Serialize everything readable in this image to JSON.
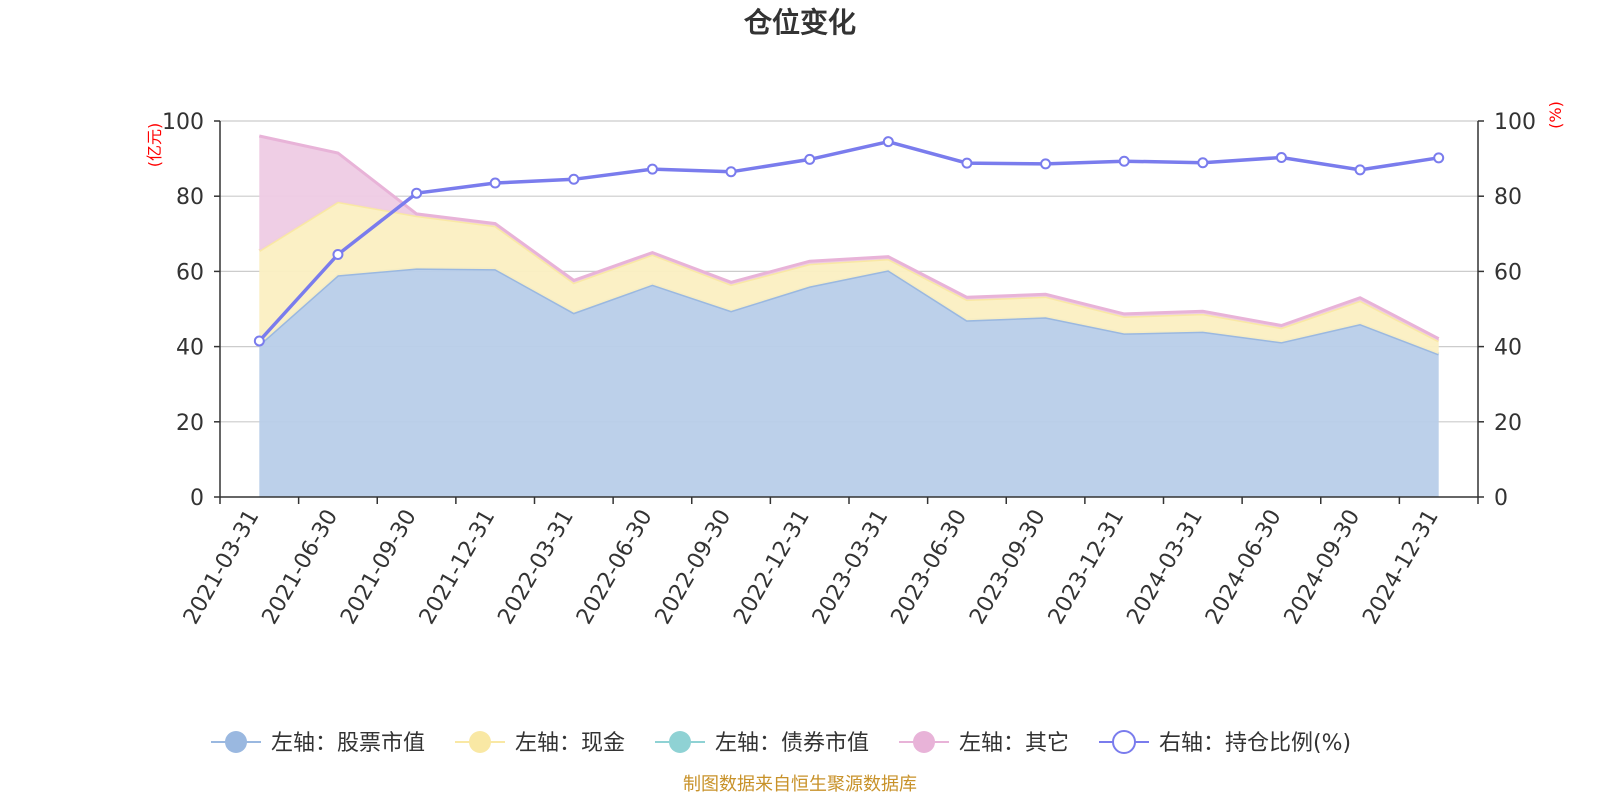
{
  "chart_data": {
    "type": "area",
    "title": "仓位变化",
    "left_unit": "(亿元)",
    "right_unit": "(%)",
    "categories": [
      "2021-03-31",
      "2021-06-30",
      "2021-09-30",
      "2021-12-31",
      "2022-03-31",
      "2022-06-30",
      "2022-09-30",
      "2022-12-31",
      "2023-03-31",
      "2023-06-30",
      "2023-09-30",
      "2023-12-31",
      "2024-03-31",
      "2024-06-30",
      "2024-09-30",
      "2024-12-31"
    ],
    "left_ylim": [
      0,
      100
    ],
    "right_ylim": [
      0,
      100
    ],
    "left_ticks": [
      "0",
      "20",
      "40",
      "60",
      "80",
      "100"
    ],
    "right_ticks": [
      "0",
      "20",
      "40",
      "60",
      "80",
      "100"
    ],
    "series": [
      {
        "name": "左轴：股票市值",
        "axis": "left",
        "kind": "stacked-area",
        "color": "#9ab8e0",
        "fill": "#b8cde9",
        "values": [
          40.5,
          59.0,
          60.8,
          60.6,
          49.0,
          56.5,
          49.5,
          56.0,
          60.3,
          47.0,
          47.8,
          43.5,
          44.0,
          41.2,
          46.0,
          38.0
        ]
      },
      {
        "name": "左轴：现金",
        "axis": "left",
        "kind": "stacked-area",
        "color": "#f9e8a4",
        "fill": "#fbefc2",
        "values": [
          25.0,
          19.5,
          14.0,
          11.5,
          8.0,
          8.0,
          7.0,
          6.0,
          3.0,
          5.5,
          5.5,
          4.5,
          4.7,
          3.8,
          6.2,
          3.5
        ]
      },
      {
        "name": "左轴：债券市值",
        "axis": "left",
        "kind": "stacked-area",
        "color": "#8fd2d4",
        "fill": "#b3e1e2",
        "values": [
          0,
          0,
          0,
          0,
          0,
          0,
          0,
          0,
          0,
          0,
          0,
          0,
          0,
          0,
          0,
          0
        ]
      },
      {
        "name": "左轴：其它",
        "axis": "left",
        "kind": "stacked-area",
        "color": "#e8b3d8",
        "fill": "#eecbe4",
        "values": [
          30.5,
          13.0,
          0.5,
          0.6,
          0.6,
          0.5,
          0.6,
          0.7,
          0.6,
          0.6,
          0.6,
          0.7,
          0.7,
          0.6,
          0.8,
          0.6
        ]
      },
      {
        "name": "右轴：持仓比例(%)",
        "axis": "right",
        "kind": "line",
        "color": "#7a7ced",
        "values": [
          41.5,
          64.5,
          80.8,
          83.5,
          84.5,
          87.2,
          86.5,
          89.8,
          94.5,
          88.8,
          88.6,
          89.3,
          88.9,
          90.3,
          87.0,
          90.2
        ]
      }
    ]
  },
  "source_text": "制图数据来自恒生聚源数据库"
}
